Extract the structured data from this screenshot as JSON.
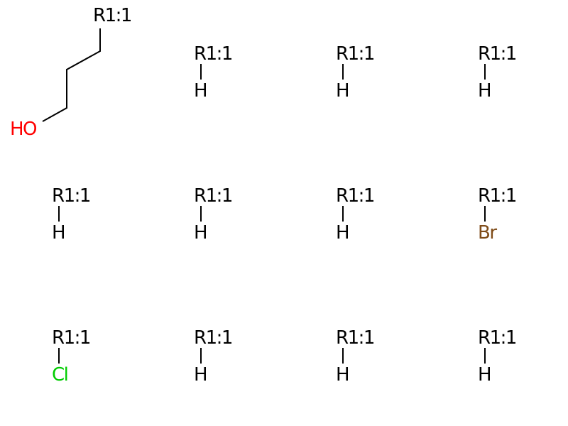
{
  "colors": {
    "carbon": "#000000",
    "H": "#000000",
    "O": "#FF0000",
    "Br": "#7F4C19",
    "Cl": "#00CC00"
  },
  "molecules": [
    {
      "kind": "chain",
      "r_label": "R1:1",
      "end_group": "HO",
      "end_color_key": "O"
    },
    {
      "kind": "simple",
      "r_label": "R1:1",
      "substituent": "H",
      "color_key": "H"
    },
    {
      "kind": "simple",
      "r_label": "R1:1",
      "substituent": "H",
      "color_key": "H"
    },
    {
      "kind": "simple",
      "r_label": "R1:1",
      "substituent": "H",
      "color_key": "H"
    },
    {
      "kind": "simple",
      "r_label": "R1:1",
      "substituent": "H",
      "color_key": "H"
    },
    {
      "kind": "simple",
      "r_label": "R1:1",
      "substituent": "H",
      "color_key": "H"
    },
    {
      "kind": "simple",
      "r_label": "R1:1",
      "substituent": "H",
      "color_key": "H"
    },
    {
      "kind": "simple",
      "r_label": "R1:1",
      "substituent": "Br",
      "color_key": "Br"
    },
    {
      "kind": "simple",
      "r_label": "R1:1",
      "substituent": "Cl",
      "color_key": "Cl"
    },
    {
      "kind": "simple",
      "r_label": "R1:1",
      "substituent": "H",
      "color_key": "H"
    },
    {
      "kind": "simple",
      "r_label": "R1:1",
      "substituent": "H",
      "color_key": "H"
    },
    {
      "kind": "simple",
      "r_label": "R1:1",
      "substituent": "H",
      "color_key": "H"
    }
  ]
}
